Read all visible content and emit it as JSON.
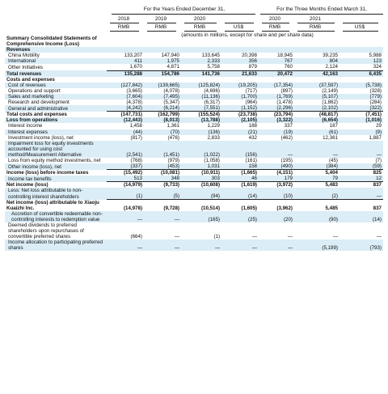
{
  "header": {
    "group1": "For the Years Ended December 31,",
    "group2": "For the Three Months Ended March 31,",
    "years": [
      "2018",
      "2019",
      "2020",
      "",
      "2020",
      "2021",
      ""
    ],
    "currencies": [
      "RMB",
      "RMB",
      "RMB",
      "US$",
      "RMB",
      "RMB",
      "US$"
    ],
    "note": "(amounts in millions, except for share and per share data)"
  },
  "rows": [
    {
      "label": "Summary Consolidated Statements of Comprehensive Income (Loss)",
      "style": "sec",
      "values": []
    },
    {
      "label": "Revenues",
      "style": "sec",
      "values": []
    },
    {
      "label": "China Mobility",
      "style": "ind",
      "values": [
        "133,207",
        "147,940",
        "133,645",
        "20,398",
        "18,945",
        "39,235",
        "5,988"
      ]
    },
    {
      "label": "International",
      "style": "ind",
      "values": [
        "411",
        "1,975",
        "2,333",
        "356",
        "767",
        "804",
        "123"
      ]
    },
    {
      "label": "Other Initiatives",
      "style": "ind",
      "values": [
        "1,670",
        "4,871",
        "5,758",
        "879",
        "760",
        "2,124",
        "324"
      ]
    },
    {
      "label": "Total revenues",
      "style": "total bold",
      "values": [
        "135,288",
        "154,786",
        "141,736",
        "21,633",
        "20,472",
        "42,163",
        "6,435"
      ]
    },
    {
      "label": "Costs and expenses",
      "style": "sec",
      "values": []
    },
    {
      "label": "Cost of revenues",
      "style": "ind",
      "values": [
        "(127,842)",
        "(139,665)",
        "(125,824)",
        "(19,205)",
        "(17,354)",
        "(37,597)",
        "(5,738)"
      ]
    },
    {
      "label": "Operations and support",
      "style": "ind",
      "values": [
        "(3,665)",
        "(4,078)",
        "(4,696)",
        "(717)",
        "(897)",
        "(2,149)",
        "(328)"
      ]
    },
    {
      "label": "Sales and marketing",
      "style": "ind",
      "values": [
        "(7,604)",
        "(7,495)",
        "(11,136)",
        "(1,700)",
        "(1,769)",
        "(5,107)",
        "(779)"
      ]
    },
    {
      "label": "Research and development",
      "style": "ind",
      "values": [
        "(4,378)",
        "(5,347)",
        "(6,317)",
        "(964)",
        "(1,478)",
        "(1,862)",
        "(284)"
      ]
    },
    {
      "label": "General and administrative",
      "style": "ind",
      "values": [
        "(4,242)",
        "(6,214)",
        "(7,551)",
        "(1,152)",
        "(2,296)",
        "(2,102)",
        "(322)"
      ]
    },
    {
      "label": "Total costs and expenses",
      "style": "total bold",
      "values": [
        "(147,731)",
        "(162,799)",
        "(155,524)",
        "(23,738)",
        "(23,794)",
        "(48,817)",
        "(7,451)"
      ]
    },
    {
      "label": "Loss from operations",
      "style": "bold",
      "values": [
        "(12,443)",
        "(8,013)",
        "(13,788)",
        "(2,105)",
        "(3,322)",
        "(6,654)",
        "(1,016)"
      ]
    },
    {
      "label": "Interest income",
      "style": "ind",
      "values": [
        "1,458",
        "1,361",
        "1,229",
        "188",
        "337",
        "187",
        "29"
      ]
    },
    {
      "label": "Interest expenses",
      "style": "ind",
      "values": [
        "(44)",
        "(70)",
        "(136)",
        "(21)",
        "(19)",
        "(61)",
        "(9)"
      ]
    },
    {
      "label": "Investment income (loss), net",
      "style": "ind",
      "values": [
        "(817)",
        "(476)",
        "2,833",
        "432",
        "(462)",
        "12,361",
        "1,887"
      ]
    },
    {
      "label": "Impairment loss for equity investments accounted for using cost method/Measurement Alternative",
      "style": "ind",
      "values": [
        "(2,541)",
        "(1,451)",
        "(1,022)",
        "(156)",
        "—",
        "—",
        "—"
      ]
    },
    {
      "label": "Loss from equity method investments, net",
      "style": "ind",
      "values": [
        "(768)",
        "(979)",
        "(1,058)",
        "(161)",
        "(195)",
        "(45)",
        "(7)"
      ]
    },
    {
      "label": "Other income (loss), net",
      "style": "ind",
      "values": [
        "(337)",
        "(453)",
        "1,031",
        "158",
        "(490)",
        "(384)",
        "(59)"
      ]
    },
    {
      "label": "Income (loss) before income taxes",
      "style": "total bold",
      "values": [
        "(15,492)",
        "(10,081)",
        "(10,911)",
        "(1,665)",
        "(4,151)",
        "5,404",
        "825"
      ]
    },
    {
      "label": "Income tax benefits",
      "style": "ind",
      "values": [
        "513",
        "348",
        "303",
        "46",
        "179",
        "79",
        "12"
      ]
    },
    {
      "label": "Net income (loss)",
      "style": "total bold",
      "values": [
        "(14,979)",
        "(9,733)",
        "(10,608)",
        "(1,619)",
        "(3,972)",
        "5,483",
        "837"
      ]
    },
    {
      "label": "Less: Net loss attributable to non-controlling interest shareholders",
      "style": "ind",
      "values": [
        "(1)",
        "(5)",
        "(94)",
        "(14)",
        "(10)",
        "(2)",
        "—"
      ]
    },
    {
      "label": "Net income (loss) attributable to Xiaoju Kuaizhi Inc.",
      "style": "total bold",
      "values": [
        "(14,978)",
        "(9,728)",
        "(10,514)",
        "(1,605)",
        "(3,962)",
        "5,485",
        "837"
      ]
    },
    {
      "label": "Accretion of convertible redeemable non-controlling interests to redemption value",
      "style": "ind2",
      "values": [
        "—",
        "—",
        "(165)",
        "(25)",
        "(20)",
        "(90)",
        "(14)"
      ]
    },
    {
      "label": "Deemed dividends to preferred shareholders upon repurchases of convertible preferred shares",
      "style": "ind",
      "values": [
        "(664)",
        "—",
        "(1)",
        "—",
        "—",
        "—",
        "—"
      ]
    },
    {
      "label": "Income allocation to participating preferred shares",
      "style": "ind",
      "values": [
        "—",
        "—",
        "—",
        "—",
        "—",
        "(5,199)",
        "(793)"
      ]
    }
  ]
}
